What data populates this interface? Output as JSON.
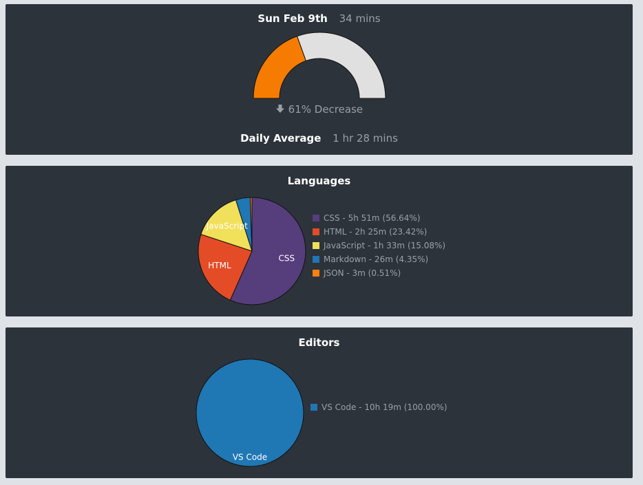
{
  "today": {
    "date_label": "Sun Feb 9th",
    "time_today": "34 mins",
    "change_label": "61% Decrease",
    "daily_average_label": "Daily Average",
    "daily_average_value": "1 hr 28 mins",
    "gauge": {
      "fraction_of_average": 0.39,
      "fill_color": "#f57c00",
      "track_color": "#e0e0e0"
    }
  },
  "languages": {
    "title": "Languages",
    "legend": [
      "CSS - 5h 51m (56.64%)",
      "HTML - 2h 25m (23.42%)",
      "JavaScript - 1h 33m (15.08%)",
      "Markdown - 26m (4.35%)",
      "JSON - 3m (0.51%)"
    ]
  },
  "editors": {
    "title": "Editors",
    "legend": [
      "VS Code - 10h 19m (100.00%)"
    ]
  },
  "chart_data": [
    {
      "type": "pie",
      "title": "Languages",
      "categories": [
        "CSS",
        "HTML",
        "JavaScript",
        "Markdown",
        "JSON"
      ],
      "values": [
        56.64,
        23.42,
        15.08,
        4.35,
        0.51
      ],
      "colors": [
        "#563d7c",
        "#e34c26",
        "#f1e05a",
        "#1f77b4",
        "#ff7f0e"
      ],
      "slice_labels": [
        "CSS",
        "HTML",
        "JavaScript",
        "",
        ""
      ],
      "legend_position": "right"
    },
    {
      "type": "pie",
      "title": "Editors",
      "categories": [
        "VS Code"
      ],
      "values": [
        100.0
      ],
      "colors": [
        "#1f77b4"
      ],
      "slice_labels": [
        "VS Code"
      ],
      "legend_position": "right"
    }
  ]
}
